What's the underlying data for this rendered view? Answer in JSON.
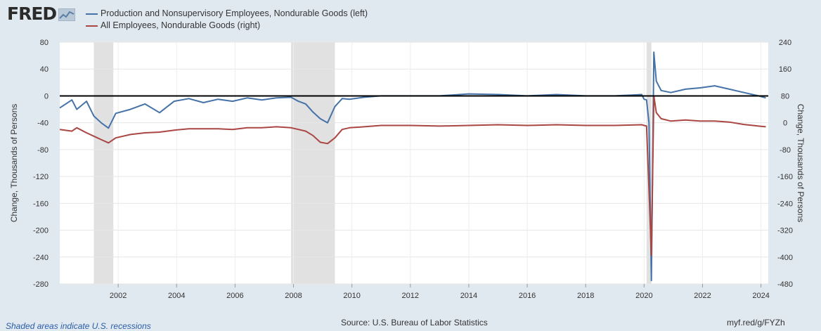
{
  "header": {
    "logo_text": "FRED",
    "logo_icon": "line-chart-icon"
  },
  "legend": [
    {
      "label": "Production and Nonsupervisory Employees, Nondurable Goods (left)",
      "color": "#4572a7"
    },
    {
      "label": "All Employees, Nondurable Goods (right)",
      "color": "#aa4643"
    }
  ],
  "footer": {
    "note": "Shaded areas indicate U.S. recessions",
    "source": "Source: U.S. Bureau of Labor Statistics",
    "link": "myf.red/g/FYZh"
  },
  "colors": {
    "background": "#e1e9f0",
    "plot_background": "#ffffff",
    "recession": "#e1e1e1",
    "zero_line": "#000000"
  },
  "chart_data": {
    "type": "line",
    "left_axis": {
      "label": "Change, Thousands of Persons",
      "range": [
        -280,
        80
      ],
      "ticks": [
        80,
        40,
        0,
        -40,
        -80,
        -120,
        -160,
        -200,
        -240,
        -280
      ]
    },
    "right_axis": {
      "label": "Change, Thousands of Persons",
      "range": [
        -480,
        240
      ],
      "ticks": [
        240,
        160,
        80,
        0,
        -80,
        -160,
        -240,
        -320,
        -400,
        -480
      ]
    },
    "x_axis": {
      "range": [
        "2000-01",
        "2024-04"
      ],
      "ticks": [
        "2002",
        "2004",
        "2006",
        "2008",
        "2010",
        "2012",
        "2014",
        "2016",
        "2018",
        "2020",
        "2022",
        "2024"
      ]
    },
    "recessions": [
      [
        "2001-03",
        "2001-11"
      ],
      [
        "2007-12",
        "2009-06"
      ],
      [
        "2020-02",
        "2020-04"
      ]
    ],
    "zero_line": 0,
    "grid": true,
    "legend_position": "top-left",
    "series": [
      {
        "name": "Production and Nonsupervisory Employees, Nondurable Goods (left)",
        "axis": "left",
        "color": "#4572a7",
        "x": [
          "2000-01",
          "2000-06",
          "2000-08",
          "2000-12",
          "2001-03",
          "2001-06",
          "2001-09",
          "2001-12",
          "2002-06",
          "2002-12",
          "2003-06",
          "2003-12",
          "2004-06",
          "2004-12",
          "2005-06",
          "2005-12",
          "2006-06",
          "2006-12",
          "2007-06",
          "2007-12",
          "2008-03",
          "2008-06",
          "2008-09",
          "2008-12",
          "2009-03",
          "2009-06",
          "2009-09",
          "2009-12",
          "2010-06",
          "2011-01",
          "2012-01",
          "2013-01",
          "2014-01",
          "2015-01",
          "2016-01",
          "2017-01",
          "2018-01",
          "2019-01",
          "2019-12",
          "2020-01",
          "2020-02",
          "2020-03",
          "2020-04",
          "2020-05",
          "2020-06",
          "2020-08",
          "2020-12",
          "2021-06",
          "2021-12",
          "2022-06",
          "2022-12",
          "2023-06",
          "2023-12",
          "2024-03"
        ],
        "values": [
          -18,
          -6,
          -20,
          -8,
          -30,
          -40,
          -48,
          -26,
          -20,
          -12,
          -25,
          -8,
          -4,
          -10,
          -5,
          -8,
          -3,
          -6,
          -3,
          -2,
          -8,
          -12,
          -24,
          -34,
          -40,
          -16,
          -4,
          -5,
          -2,
          0,
          0,
          0,
          3,
          2,
          0,
          2,
          0,
          0,
          2,
          -5,
          -6,
          -40,
          -275,
          65,
          22,
          8,
          5,
          10,
          12,
          15,
          10,
          5,
          0,
          -3
        ]
      },
      {
        "name": "All Employees, Nondurable Goods (right)",
        "axis": "right",
        "color": "#aa4643",
        "x": [
          "2000-01",
          "2000-06",
          "2000-08",
          "2000-12",
          "2001-03",
          "2001-06",
          "2001-09",
          "2001-12",
          "2002-06",
          "2002-12",
          "2003-06",
          "2003-12",
          "2004-06",
          "2004-12",
          "2005-06",
          "2005-12",
          "2006-06",
          "2006-12",
          "2007-06",
          "2007-12",
          "2008-03",
          "2008-06",
          "2008-09",
          "2008-12",
          "2009-03",
          "2009-06",
          "2009-09",
          "2009-12",
          "2010-06",
          "2011-01",
          "2012-01",
          "2013-01",
          "2014-01",
          "2015-01",
          "2016-01",
          "2017-01",
          "2018-01",
          "2019-01",
          "2019-12",
          "2020-01",
          "2020-02",
          "2020-03",
          "2020-04",
          "2020-05",
          "2020-06",
          "2020-08",
          "2020-12",
          "2021-06",
          "2021-12",
          "2022-06",
          "2022-12",
          "2023-06",
          "2023-12",
          "2024-03"
        ],
        "values": [
          -20,
          -25,
          -15,
          -30,
          -40,
          -50,
          -60,
          -45,
          -35,
          -30,
          -28,
          -22,
          -18,
          -18,
          -18,
          -20,
          -15,
          -15,
          -12,
          -15,
          -20,
          -25,
          -38,
          -58,
          -62,
          -45,
          -20,
          -15,
          -12,
          -8,
          -8,
          -10,
          -8,
          -6,
          -8,
          -6,
          -8,
          -8,
          -6,
          -8,
          -10,
          -200,
          -395,
          80,
          30,
          12,
          5,
          8,
          5,
          5,
          2,
          -5,
          -10,
          -12
        ]
      }
    ]
  }
}
